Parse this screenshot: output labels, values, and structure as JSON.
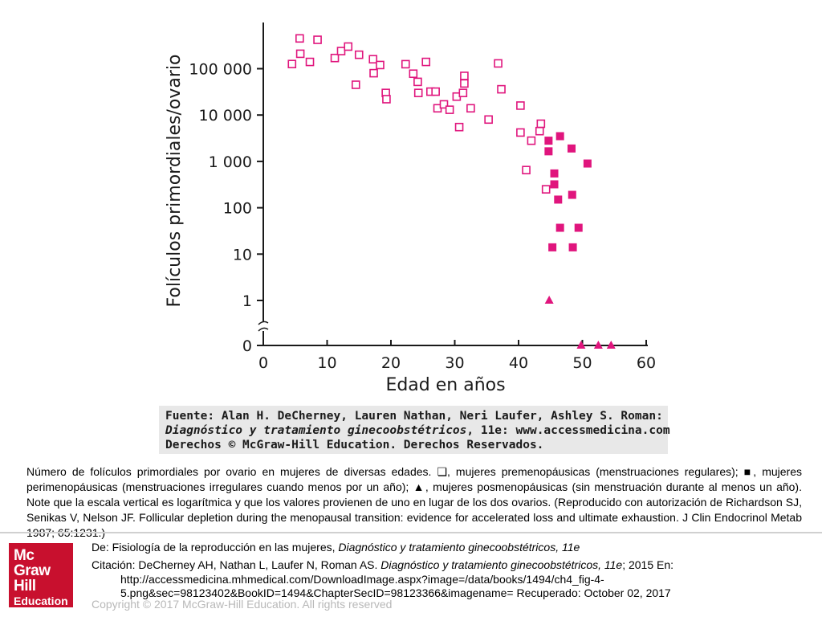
{
  "chart_data": {
    "type": "scatter",
    "xlabel": "Edad en años",
    "ylabel": "Folículos primordiales/ovario",
    "xlim": [
      0,
      60
    ],
    "x_ticks": [
      0,
      10,
      20,
      30,
      40,
      50,
      60
    ],
    "y_scale": "log10 with axis break at bottom",
    "y_ticks": [
      {
        "value": 1,
        "label": "1"
      },
      {
        "value": 10,
        "label": "10"
      },
      {
        "value": 100,
        "label": "100"
      },
      {
        "value": 1000,
        "label": "1 000"
      },
      {
        "value": 10000,
        "label": "10 000"
      },
      {
        "value": 100000,
        "label": "100 000"
      },
      {
        "value": 0,
        "label": "0"
      }
    ],
    "color": "#e0157d",
    "series": [
      {
        "name": "mujeres premenopáusicas (menstruaciones regulares)",
        "marker": "open-square",
        "points": [
          [
            4.5,
            126000
          ],
          [
            5.8,
            210000
          ],
          [
            5.7,
            450000
          ],
          [
            7.3,
            140000
          ],
          [
            8.5,
            420000
          ],
          [
            11.2,
            170000
          ],
          [
            12.2,
            240000
          ],
          [
            13.3,
            300000
          ],
          [
            14.5,
            45000
          ],
          [
            15,
            200000
          ],
          [
            17.2,
            160000
          ],
          [
            17.3,
            80000
          ],
          [
            18.3,
            120000
          ],
          [
            19.2,
            30000
          ],
          [
            19.3,
            22000
          ],
          [
            22.3,
            125000
          ],
          [
            23.5,
            78000
          ],
          [
            24.2,
            52000
          ],
          [
            24.3,
            30000
          ],
          [
            25.5,
            140000
          ],
          [
            26.2,
            32000
          ],
          [
            27,
            32000
          ],
          [
            27.3,
            14000
          ],
          [
            28.3,
            17000
          ],
          [
            29.2,
            13000
          ],
          [
            30.3,
            25000
          ],
          [
            30.7,
            5500
          ],
          [
            31.3,
            30000
          ],
          [
            31.5,
            48000
          ],
          [
            31.5,
            70000
          ],
          [
            32.5,
            14000
          ],
          [
            35.3,
            8000
          ],
          [
            36.8,
            130000
          ],
          [
            37.3,
            36000
          ],
          [
            40.3,
            4200
          ],
          [
            40.3,
            16000
          ],
          [
            41.2,
            650
          ],
          [
            42,
            2800
          ],
          [
            43.3,
            4500
          ],
          [
            43.5,
            6500
          ],
          [
            44.3,
            250
          ]
        ]
      },
      {
        "name": "mujeres perimenopáusicas (menstruaciones irregulares cuando menos por un año)",
        "marker": "filled-square",
        "points": [
          [
            44.7,
            2800
          ],
          [
            44.7,
            1650
          ],
          [
            45.3,
            14
          ],
          [
            45.6,
            320
          ],
          [
            45.6,
            550
          ],
          [
            46.2,
            150
          ],
          [
            46.5,
            37
          ],
          [
            46.5,
            3500
          ],
          [
            48.3,
            1900
          ],
          [
            48.4,
            190
          ],
          [
            48.5,
            14
          ],
          [
            49.4,
            37
          ],
          [
            50.8,
            900
          ]
        ]
      },
      {
        "name": "mujeres posmenopáusicas (sin menstruación durante al menos un año)",
        "marker": "filled-triangle",
        "points": [
          [
            44.8,
            1
          ],
          [
            49.8,
            0
          ],
          [
            52.5,
            0
          ],
          [
            54.5,
            0
          ]
        ]
      }
    ]
  },
  "source_box": {
    "line1": "Fuente: Alan H. DeCherney, Lauren Nathan, Neri Laufer, Ashley S. Roman:",
    "line2_italic": "Diagnóstico y tratamiento ginecoobstétricos",
    "line2_rest": ", 11e: www.accessmedicina.com",
    "line3": "Derechos © McGraw-Hill Education. Derechos Reservados."
  },
  "caption": "Número de folículos primordiales por ovario en mujeres de diversas edades. ❏, mujeres premenopáusicas (menstruaciones regulares); ■, mujeres perimenopáusicas (menstruaciones irregulares cuando menos por un año); ▲, mujeres posmenopáusicas (sin menstruación durante al menos un año). Note que la escala vertical es logarítmica y que los valores provienen de uno en lugar de los dos ovarios. (Reproducido con autorización de Richardson SJ, Senikas V, Nelson JF. Follicular depletion during the menopausal transition: evidence for accelerated loss and ultimate exhaustion. J Clin Endocrinol Metab 1987; 65:1231.)",
  "logo": {
    "line1": "Mc",
    "line2": "Graw",
    "line3": "Hill",
    "line4": "Education",
    "color": "#c8102e"
  },
  "footer": {
    "from_prefix": "De: Fisiología de la reproducción en las mujeres, ",
    "from_book": "Diagnóstico y tratamiento ginecoobstétricos, 11e",
    "citation_prefix": "Citación: DeCherney AH, Nathan L, Laufer N, Roman AS. ",
    "citation_book": "Diagnóstico y tratamiento ginecoobstétricos, 11e",
    "citation_suffix": "; 2015 En:",
    "url_line1": "http://accessmedicina.mhmedical.com/DownloadImage.aspx?image=/data/books/1494/ch4_fig-4-",
    "url_line2": "5.png&sec=98123402&BookID=1494&ChapterSecID=98123366&imagename= Recuperado: October 02, 2017",
    "copyright": "Copyright © 2017 McGraw-Hill Education. All rights reserved"
  }
}
